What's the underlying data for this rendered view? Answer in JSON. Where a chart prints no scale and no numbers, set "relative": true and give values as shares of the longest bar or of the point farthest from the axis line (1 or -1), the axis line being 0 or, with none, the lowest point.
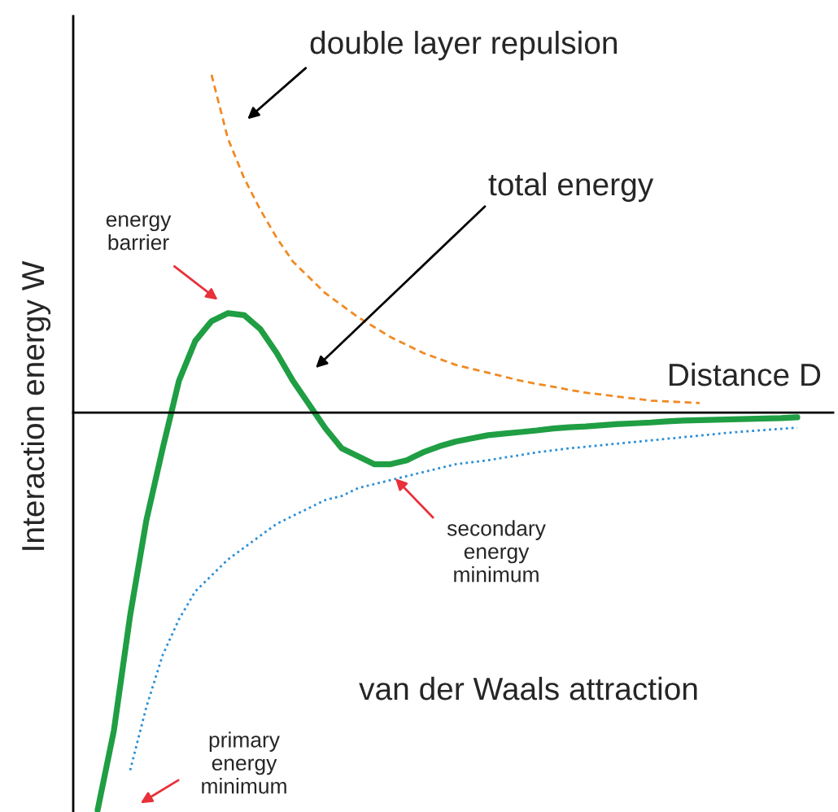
{
  "chart_data": {
    "type": "line",
    "relative": true,
    "xlabel": "Distance D",
    "ylabel": "Interaction energy W",
    "categories": [
      null,
      null,
      null,
      null,
      null,
      null,
      null,
      null,
      null,
      null,
      null,
      null,
      null,
      null,
      null,
      null,
      null,
      null,
      null,
      null,
      null,
      null,
      null,
      null,
      null,
      null,
      null,
      null,
      null,
      null,
      null,
      null,
      null,
      null,
      null,
      null,
      null,
      null,
      null,
      null,
      null,
      null,
      null,
      null
    ],
    "series": [
      {
        "color": "#1f9e43",
        "line_style": "solid",
        "values": [
          -1.0,
          -0.8,
          -0.51,
          -0.27,
          -0.09,
          0.08,
          0.18,
          0.23,
          0.25,
          0.245,
          0.21,
          0.15,
          0.08,
          0.02,
          -0.04,
          -0.09,
          -0.11,
          -0.13,
          -0.13,
          -0.12,
          -0.1,
          -0.085,
          -0.073,
          -0.065,
          -0.057,
          -0.053,
          -0.049,
          -0.045,
          -0.04,
          -0.037,
          -0.035,
          -0.032,
          -0.029,
          -0.027,
          -0.025,
          -0.022,
          -0.02,
          -0.019,
          -0.018,
          -0.017,
          -0.016,
          -0.015,
          -0.014,
          -0.012
        ]
      },
      {
        "color": "#2b8fd6",
        "line_style": "dotted",
        "values": [
          null,
          null,
          -0.9,
          -0.74,
          -0.61,
          -0.52,
          -0.45,
          -0.41,
          -0.37,
          -0.34,
          -0.31,
          -0.28,
          -0.26,
          -0.24,
          -0.22,
          -0.21,
          -0.19,
          -0.18,
          -0.17,
          -0.16,
          -0.15,
          -0.14,
          -0.13,
          -0.125,
          -0.12,
          -0.113,
          -0.107,
          -0.1,
          -0.095,
          -0.09,
          -0.086,
          -0.082,
          -0.078,
          -0.074,
          -0.07,
          -0.066,
          -0.062,
          -0.058,
          -0.054,
          -0.05,
          -0.047,
          -0.044,
          -0.041,
          -0.038
        ]
      },
      {
        "color": "#f08a24",
        "line_style": "dashed",
        "values": [
          null,
          null,
          null,
          null,
          null,
          null,
          null,
          0.85,
          0.69,
          0.59,
          0.51,
          0.44,
          0.38,
          0.34,
          0.3,
          0.27,
          0.24,
          0.215,
          0.19,
          0.17,
          0.15,
          0.135,
          0.12,
          0.11,
          0.1,
          0.09,
          0.08,
          0.072,
          0.065,
          0.057,
          0.05,
          0.045,
          0.04,
          0.035,
          0.03,
          0.028,
          0.026,
          0.024,
          null,
          null,
          null,
          null,
          null,
          null
        ]
      }
    ],
    "annotations": [
      "double layer repulsion",
      "total energy",
      "energy\nbarrier",
      "secondary\nenergy\nminimum",
      "van der Waals attraction",
      "primary\nenergy\nminimum"
    ]
  }
}
